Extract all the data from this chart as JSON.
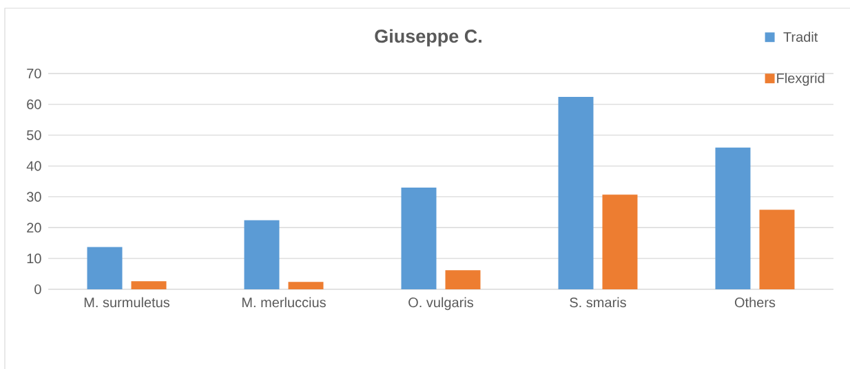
{
  "chart_data": {
    "type": "bar",
    "title": "Giuseppe C.",
    "categories": [
      "M. surmuletus",
      "M. merluccius",
      "O. vulgaris",
      "S. smaris",
      "Others"
    ],
    "series": [
      {
        "name": "Tradit",
        "color": "#5b9bd5",
        "values": [
          13.7,
          22.4,
          33.0,
          62.4,
          46.0
        ]
      },
      {
        "name": "Flexgrid",
        "color": "#ed7d31",
        "values": [
          2.6,
          2.4,
          6.2,
          30.7,
          25.8
        ]
      }
    ],
    "ylim": [
      0,
      70
    ],
    "yticks": [
      0,
      10,
      20,
      30,
      40,
      50,
      60,
      70
    ],
    "grid": "y",
    "legend": "top right"
  }
}
